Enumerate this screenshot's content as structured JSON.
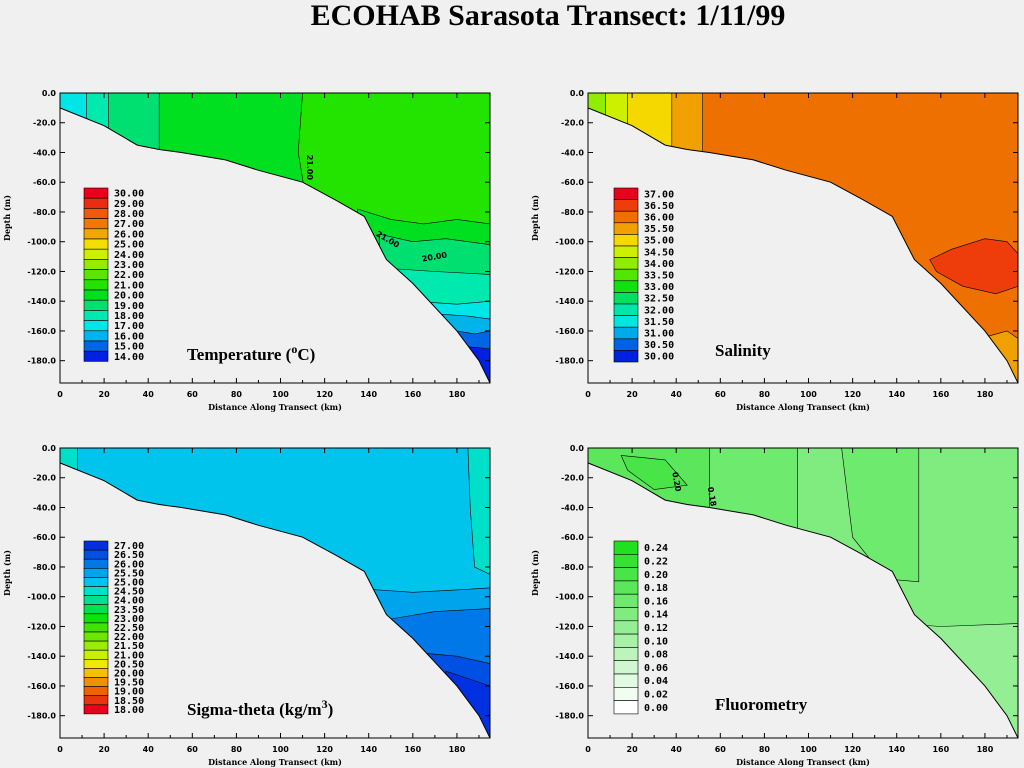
{
  "title": "ECOHAB Sarasota Transect: 1/11/99",
  "chart_data": [
    {
      "type": "contour",
      "title": "Temperature (°C)",
      "title_main": "Temperature (",
      "title_sup": "o",
      "title_rest": "C)",
      "xlabel": "Distance Along Transect (km)",
      "ylabel": "Depth (m)",
      "xlim": [
        0,
        195
      ],
      "ylim": [
        -195,
        0
      ],
      "xticks": [
        "0",
        "20",
        "40",
        "60",
        "80",
        "100",
        "120",
        "140",
        "160",
        "180"
      ],
      "yticks": [
        "0.0",
        "-20.0",
        "-40.0",
        "-60.0",
        "-80.0",
        "-100.0",
        "-120.0",
        "-140.0",
        "-160.0",
        "-180.0"
      ],
      "legend_levels": [
        "30.00",
        "29.00",
        "28.00",
        "27.00",
        "26.00",
        "25.00",
        "24.00",
        "23.00",
        "22.00",
        "21.00",
        "20.00",
        "19.00",
        "18.00",
        "17.00",
        "16.00",
        "15.00",
        "14.00"
      ],
      "legend_colors": [
        "#e8001c",
        "#ea2c10",
        "#ee5a0a",
        "#ee7a00",
        "#f0a800",
        "#f4e000",
        "#ccf000",
        "#96ec00",
        "#5ae600",
        "#22e400",
        "#00e020",
        "#00e070",
        "#00eab0",
        "#00e6e6",
        "#00b4ea",
        "#0066e6",
        "#0022e0"
      ],
      "contour_labels": [
        "21.00",
        "21.00",
        "20.00"
      ]
    },
    {
      "type": "contour",
      "title": "Salinity",
      "xlabel": "Distance Along Transect (km)",
      "ylabel": "Depth (m)",
      "xlim": [
        0,
        195
      ],
      "ylim": [
        -195,
        0
      ],
      "xticks": [
        "0",
        "20",
        "40",
        "60",
        "80",
        "100",
        "120",
        "140",
        "160",
        "180"
      ],
      "yticks": [
        "0.0",
        "-20.0",
        "-40.0",
        "-60.0",
        "-80.0",
        "-100.0",
        "-120.0",
        "-140.0",
        "-160.0",
        "-180.0"
      ],
      "legend_levels": [
        "37.00",
        "36.50",
        "36.00",
        "35.50",
        "35.00",
        "34.50",
        "34.00",
        "33.50",
        "33.00",
        "32.50",
        "32.00",
        "31.50",
        "31.00",
        "30.50",
        "30.00"
      ],
      "legend_colors": [
        "#e8001c",
        "#ee3c0a",
        "#ee7000",
        "#f0a000",
        "#f4d800",
        "#ccf000",
        "#90ec00",
        "#50e600",
        "#10e210",
        "#00e060",
        "#00e6a8",
        "#00e6e0",
        "#00aaea",
        "#0060e6",
        "#0020e0"
      ]
    },
    {
      "type": "contour",
      "title": "Sigma-theta (kg/m3)",
      "title_main": "Sigma-theta  (kg/m",
      "title_sup": "3",
      "title_rest": ")",
      "xlabel": "Distance Along Transect (km)",
      "ylabel": "Depth (m)",
      "xlim": [
        0,
        195
      ],
      "ylim": [
        -195,
        0
      ],
      "xticks": [
        "0",
        "20",
        "40",
        "60",
        "80",
        "100",
        "120",
        "140",
        "160",
        "180"
      ],
      "yticks": [
        "0.0",
        "-20.0",
        "-40.0",
        "-60.0",
        "-80.0",
        "-100.0",
        "-120.0",
        "-140.0",
        "-160.0",
        "-180.0"
      ],
      "legend_levels": [
        "27.00",
        "26.50",
        "26.00",
        "25.50",
        "25.00",
        "24.50",
        "24.00",
        "23.50",
        "23.00",
        "22.50",
        "22.00",
        "21.50",
        "21.00",
        "20.50",
        "20.00",
        "19.50",
        "19.00",
        "18.50",
        "18.00"
      ],
      "legend_colors": [
        "#0030e0",
        "#0050e4",
        "#0078e8",
        "#00a4ec",
        "#00c4ec",
        "#00e0c8",
        "#00e090",
        "#00e050",
        "#10e010",
        "#40e400",
        "#6ae800",
        "#9aec00",
        "#c8f000",
        "#f0e800",
        "#f4c000",
        "#f09000",
        "#ee6400",
        "#ea3410",
        "#e8001c"
      ]
    },
    {
      "type": "contour",
      "title": "Fluorometry",
      "xlabel": "Distance Along Transect (km)",
      "ylabel": "Depth (m)",
      "xlim": [
        0,
        195
      ],
      "ylim": [
        -195,
        0
      ],
      "xticks": [
        "0",
        "20",
        "40",
        "60",
        "80",
        "100",
        "120",
        "140",
        "160",
        "180"
      ],
      "yticks": [
        "0.0",
        "-20.0",
        "-40.0",
        "-60.0",
        "-80.0",
        "-100.0",
        "-120.0",
        "-140.0",
        "-160.0",
        "-180.0"
      ],
      "legend_levels": [
        "0.24",
        "0.22",
        "0.20",
        "0.18",
        "0.16",
        "0.14",
        "0.12",
        "0.10",
        "0.08",
        "0.06",
        "0.04",
        "0.02",
        "0.00"
      ],
      "legend_colors": [
        "#20e020",
        "#34e234",
        "#48e448",
        "#5ce65c",
        "#6eea6e",
        "#80ec80",
        "#94ee94",
        "#a8f2a8",
        "#bcf4bc",
        "#d0f8d0",
        "#e2fae2",
        "#f2fdf2",
        "#ffffff"
      ],
      "contour_labels": [
        "0.20",
        "0.18"
      ]
    }
  ],
  "colors": {
    "background": "#f0f0f0",
    "seafloor": "#f0f0f0"
  }
}
